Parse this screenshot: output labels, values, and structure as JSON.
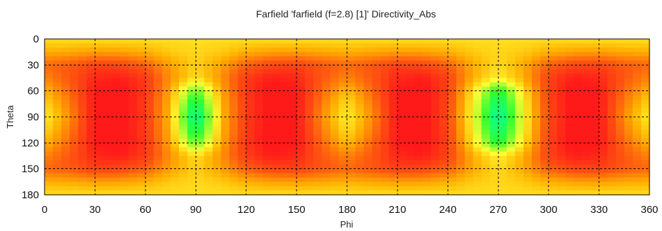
{
  "chart_data": {
    "type": "heatmap",
    "title": "Farfield 'farfield (f=2.8) [1]' Directivity_Abs",
    "xlabel": "Phi",
    "ylabel": "Theta",
    "x_ticks": [
      0,
      30,
      60,
      90,
      120,
      150,
      180,
      210,
      240,
      270,
      300,
      330,
      360
    ],
    "y_ticks": [
      0,
      30,
      60,
      90,
      120,
      150,
      180
    ],
    "xlim": [
      0,
      360
    ],
    "ylim": [
      0,
      180
    ],
    "y_inverted": true,
    "grid": true,
    "colormap": [
      "#ffff33",
      "#ffb000",
      "#ff5a10",
      "#ff1a1a",
      "#30ff30",
      "#00ffaa"
    ],
    "phi": [
      0,
      15,
      30,
      45,
      60,
      75,
      90,
      105,
      120,
      135,
      150,
      165,
      180,
      195,
      210,
      225,
      240,
      255,
      270,
      285,
      300,
      315,
      330,
      345,
      360
    ],
    "theta": [
      0,
      15,
      30,
      45,
      60,
      75,
      90,
      105,
      120,
      135,
      150,
      165,
      180
    ],
    "values": [
      [
        0.12,
        0.12,
        0.12,
        0.12,
        0.12,
        0.12,
        0.12,
        0.12,
        0.12,
        0.12,
        0.12,
        0.12,
        0.12,
        0.12,
        0.12,
        0.12,
        0.12,
        0.12,
        0.12,
        0.12,
        0.12,
        0.12,
        0.12,
        0.12,
        0.12
      ],
      [
        0.3,
        0.32,
        0.36,
        0.35,
        0.3,
        0.2,
        0.15,
        0.2,
        0.3,
        0.35,
        0.36,
        0.33,
        0.3,
        0.33,
        0.36,
        0.35,
        0.3,
        0.2,
        0.15,
        0.2,
        0.3,
        0.35,
        0.36,
        0.32,
        0.3
      ],
      [
        0.55,
        0.6,
        0.72,
        0.7,
        0.58,
        0.35,
        0.18,
        0.35,
        0.58,
        0.7,
        0.72,
        0.62,
        0.55,
        0.62,
        0.72,
        0.7,
        0.58,
        0.32,
        0.14,
        0.32,
        0.58,
        0.7,
        0.72,
        0.6,
        0.55
      ],
      [
        0.45,
        0.62,
        0.85,
        0.9,
        0.75,
        0.4,
        0.12,
        0.4,
        0.75,
        0.9,
        0.85,
        0.62,
        0.45,
        0.62,
        0.85,
        0.9,
        0.72,
        0.3,
        0.05,
        0.3,
        0.72,
        0.9,
        0.85,
        0.62,
        0.45
      ],
      [
        0.28,
        0.55,
        0.92,
        0.98,
        0.78,
        0.32,
        -0.4,
        0.32,
        0.78,
        0.98,
        0.92,
        0.55,
        0.25,
        0.55,
        0.92,
        0.98,
        0.72,
        0.12,
        -0.6,
        0.12,
        0.72,
        0.98,
        0.92,
        0.55,
        0.28
      ],
      [
        0.15,
        0.48,
        0.92,
        0.98,
        0.75,
        0.28,
        -0.75,
        0.28,
        0.75,
        0.98,
        0.92,
        0.48,
        0.12,
        0.48,
        0.92,
        0.98,
        0.7,
        0.05,
        -0.85,
        0.05,
        0.7,
        0.98,
        0.92,
        0.48,
        0.15
      ],
      [
        0.05,
        0.42,
        0.92,
        0.98,
        0.75,
        0.25,
        -0.95,
        0.25,
        0.75,
        0.98,
        0.92,
        0.42,
        0.05,
        0.42,
        0.92,
        0.98,
        0.68,
        0.02,
        -1.0,
        0.02,
        0.68,
        0.98,
        0.92,
        0.42,
        0.05
      ],
      [
        0.15,
        0.48,
        0.92,
        0.98,
        0.75,
        0.28,
        -0.75,
        0.28,
        0.75,
        0.98,
        0.92,
        0.48,
        0.12,
        0.48,
        0.92,
        0.98,
        0.7,
        0.05,
        -0.85,
        0.05,
        0.7,
        0.98,
        0.92,
        0.48,
        0.15
      ],
      [
        0.28,
        0.55,
        0.92,
        0.98,
        0.78,
        0.32,
        -0.4,
        0.32,
        0.78,
        0.98,
        0.92,
        0.55,
        0.25,
        0.55,
        0.92,
        0.98,
        0.72,
        0.12,
        -0.6,
        0.12,
        0.72,
        0.98,
        0.92,
        0.55,
        0.28
      ],
      [
        0.45,
        0.62,
        0.85,
        0.9,
        0.75,
        0.4,
        0.12,
        0.4,
        0.75,
        0.9,
        0.85,
        0.62,
        0.45,
        0.62,
        0.85,
        0.9,
        0.72,
        0.3,
        0.05,
        0.3,
        0.72,
        0.9,
        0.85,
        0.62,
        0.45
      ],
      [
        0.55,
        0.6,
        0.72,
        0.7,
        0.58,
        0.35,
        0.18,
        0.35,
        0.58,
        0.7,
        0.72,
        0.62,
        0.55,
        0.62,
        0.72,
        0.7,
        0.58,
        0.32,
        0.14,
        0.32,
        0.58,
        0.7,
        0.72,
        0.6,
        0.55
      ],
      [
        0.3,
        0.32,
        0.36,
        0.35,
        0.3,
        0.2,
        0.15,
        0.2,
        0.3,
        0.35,
        0.36,
        0.33,
        0.3,
        0.33,
        0.36,
        0.35,
        0.3,
        0.2,
        0.15,
        0.2,
        0.3,
        0.35,
        0.36,
        0.32,
        0.3
      ],
      [
        0.12,
        0.12,
        0.12,
        0.12,
        0.12,
        0.12,
        0.12,
        0.12,
        0.12,
        0.12,
        0.12,
        0.12,
        0.12,
        0.12,
        0.12,
        0.12,
        0.12,
        0.12,
        0.12,
        0.12,
        0.12,
        0.12,
        0.12,
        0.12,
        0.12
      ]
    ]
  }
}
